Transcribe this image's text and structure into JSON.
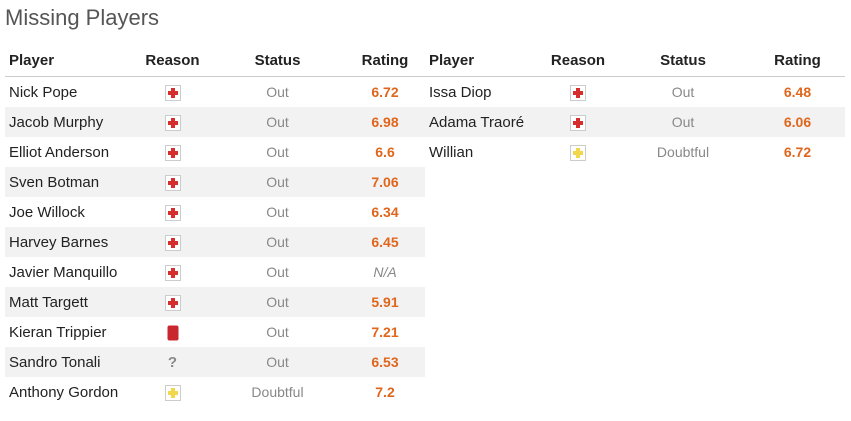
{
  "title": "Missing Players",
  "left_table": {
    "headers": [
      "Player",
      "Reason",
      "Status",
      "Rating"
    ],
    "rows": [
      {
        "player": "Nick Pope",
        "status": "Out",
        "rating": 6.72
      },
      {
        "player": "Jacob Murphy",
        "status": "Out",
        "rating": 6.98
      },
      {
        "player": "Elliot Anderson",
        "status": "Out",
        "rating": 6.6
      },
      {
        "player": "Sven Botman",
        "status": "Out",
        "rating": 7.06
      },
      {
        "player": "Joe Willock",
        "status": "Out",
        "rating": 6.34
      },
      {
        "player": "Harvey Barnes",
        "status": "Out",
        "rating": 6.45
      },
      {
        "player": "Javier Manquillo",
        "status": "Out",
        "rating": "N/A"
      },
      {
        "player": "Matt Targett",
        "status": "Out",
        "rating": 5.91
      },
      {
        "player": "Kieran Trippier",
        "status": "Out",
        "rating": 7.21
      },
      {
        "player": "Sandro Tonali",
        "reason": "?",
        "status": "Out",
        "rating": 6.53
      },
      {
        "player": "Anthony Gordon",
        "status": "Doubtful",
        "rating": 7.2
      }
    ]
  },
  "right_table": {
    "headers": [
      "Player",
      "Reason",
      "Status",
      "Rating"
    ],
    "rows": [
      {
        "player": "Issa Diop",
        "status": "Out",
        "rating": 6.48
      },
      {
        "player": "Adama Traoré",
        "status": "Out",
        "rating": 6.06
      },
      {
        "player": "Willian",
        "status": "Doubtful",
        "rating": 6.72
      }
    ]
  }
}
